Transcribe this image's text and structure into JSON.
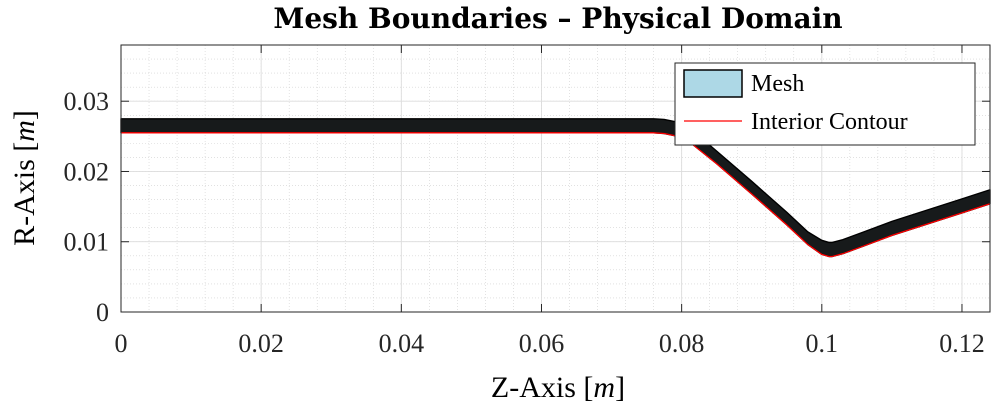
{
  "chart_data": {
    "type": "area",
    "title": "Mesh Boundaries – Physical Domain",
    "xlabel": "Z-Axis",
    "ylabel": "R-Axis",
    "unit": "m",
    "xlim": [
      0,
      0.124
    ],
    "ylim": [
      0,
      0.038
    ],
    "xticks": [
      0,
      0.02,
      0.04,
      0.06,
      0.08,
      0.1,
      0.12
    ],
    "xtick_labels": [
      "0",
      "0.02",
      "0.04",
      "0.06",
      "0.08",
      "0.1",
      "0.12"
    ],
    "yticks": [
      0,
      0.01,
      0.02,
      0.03
    ],
    "ytick_labels": [
      "0",
      "0.01",
      "0.02",
      "0.03"
    ],
    "grid": true,
    "minor_grid": true,
    "legend_position": "top-right",
    "series": [
      {
        "name": "Mesh",
        "color": "#add8e6",
        "edge_color": "#000000",
        "x": [
          0,
          0.076,
          0.0775,
          0.079,
          0.081,
          0.085,
          0.09,
          0.095,
          0.098,
          0.1,
          0.101,
          0.1015,
          0.103,
          0.106,
          0.11,
          0.115,
          0.12,
          0.124
        ],
        "lower": [
          0.0255,
          0.0255,
          0.0254,
          0.0251,
          0.0243,
          0.0211,
          0.0168,
          0.0124,
          0.0096,
          0.0082,
          0.0079,
          0.0079,
          0.0083,
          0.0094,
          0.0109,
          0.0125,
          0.0141,
          0.0154
        ],
        "upper": [
          0.0275,
          0.0275,
          0.0274,
          0.0271,
          0.0263,
          0.0229,
          0.0186,
          0.0142,
          0.0114,
          0.0102,
          0.0099,
          0.0099,
          0.0103,
          0.0114,
          0.0129,
          0.0145,
          0.0161,
          0.0174
        ]
      },
      {
        "name": "Interior Contour",
        "color": "#ff0000",
        "x": [
          0,
          0.076,
          0.0775,
          0.079,
          0.081,
          0.085,
          0.09,
          0.095,
          0.098,
          0.1,
          0.101,
          0.1015,
          0.103,
          0.106,
          0.11,
          0.115,
          0.12,
          0.124
        ],
        "y": [
          0.0255,
          0.0255,
          0.0254,
          0.0251,
          0.0243,
          0.0211,
          0.0168,
          0.0124,
          0.0096,
          0.0082,
          0.0079,
          0.0079,
          0.0083,
          0.0094,
          0.0109,
          0.0125,
          0.0141,
          0.0154
        ]
      }
    ]
  }
}
